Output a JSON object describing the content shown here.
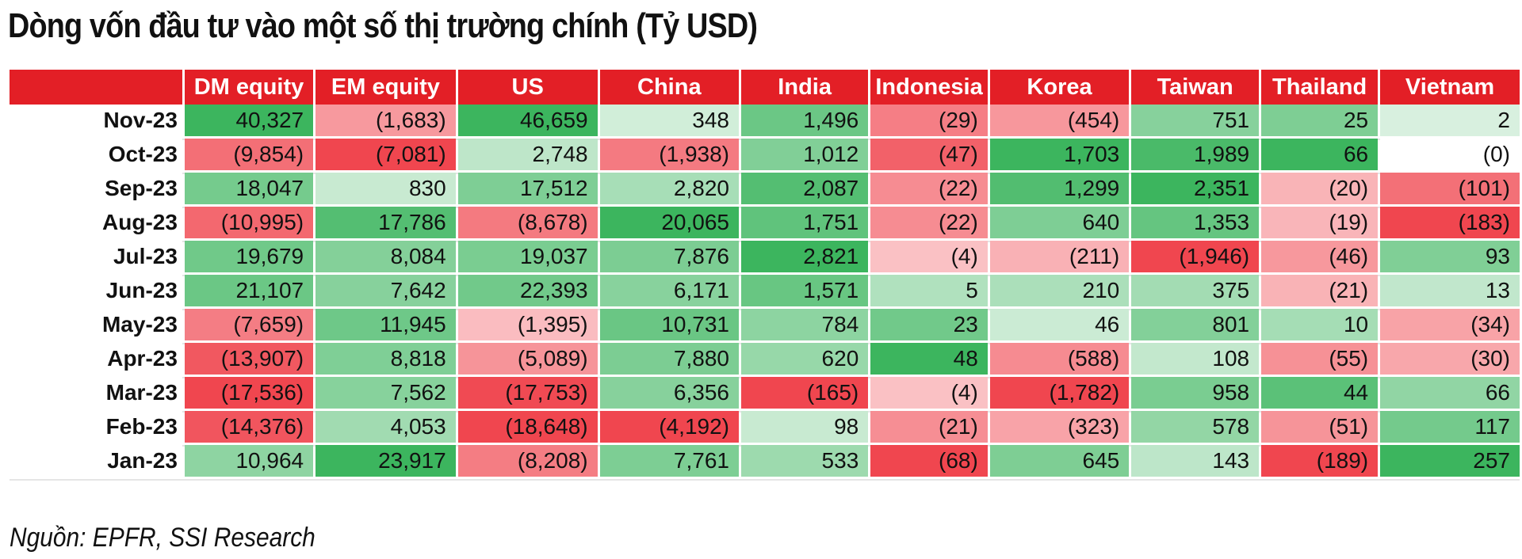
{
  "title": "Dòng vốn đầu tư vào một số thị trường chính (Tỷ USD)",
  "source": "Nguồn: EPFR, SSI Research",
  "colors": {
    "header": "#e31f26",
    "positive_max": "#3cb55e",
    "negative_max": "#f0464f",
    "neutral": "#ffffff"
  },
  "chart_data": {
    "type": "table",
    "title": "Dòng vốn đầu tư vào một số thị trường chính (Tỷ USD)",
    "columns": [
      "DM equity",
      "EM equity",
      "US",
      "China",
      "India",
      "Indonesia",
      "Korea",
      "Taiwan",
      "Thailand",
      "Vietnam"
    ],
    "rows": [
      {
        "label": "Nov-23",
        "values": [
          40327,
          -1683,
          46659,
          348,
          1496,
          -29,
          -454,
          751,
          25,
          2
        ],
        "display": [
          "40,327",
          "(1,683)",
          "46,659",
          "348",
          "1,496",
          "(29)",
          "(454)",
          "751",
          "25",
          "2"
        ]
      },
      {
        "label": "Oct-23",
        "values": [
          -9854,
          -7081,
          2748,
          -1938,
          1012,
          -47,
          1703,
          1989,
          66,
          0
        ],
        "display": [
          "(9,854)",
          "(7,081)",
          "2,748",
          "(1,938)",
          "1,012",
          "(47)",
          "1,703",
          "1,989",
          "66",
          "(0)"
        ]
      },
      {
        "label": "Sep-23",
        "values": [
          18047,
          830,
          17512,
          2820,
          2087,
          -22,
          1299,
          2351,
          -20,
          -101
        ],
        "display": [
          "18,047",
          "830",
          "17,512",
          "2,820",
          "2,087",
          "(22)",
          "1,299",
          "2,351",
          "(20)",
          "(101)"
        ]
      },
      {
        "label": "Aug-23",
        "values": [
          -10995,
          17786,
          -8678,
          20065,
          1751,
          -22,
          640,
          1353,
          -19,
          -183
        ],
        "display": [
          "(10,995)",
          "17,786",
          "(8,678)",
          "20,065",
          "1,751",
          "(22)",
          "640",
          "1,353",
          "(19)",
          "(183)"
        ]
      },
      {
        "label": "Jul-23",
        "values": [
          19679,
          8084,
          19037,
          7876,
          2821,
          -4,
          -211,
          -1946,
          -46,
          93
        ],
        "display": [
          "19,679",
          "8,084",
          "19,037",
          "7,876",
          "2,821",
          "(4)",
          "(211)",
          "(1,946)",
          "(46)",
          "93"
        ]
      },
      {
        "label": "Jun-23",
        "values": [
          21107,
          7642,
          22393,
          6171,
          1571,
          5,
          210,
          375,
          -21,
          13
        ],
        "display": [
          "21,107",
          "7,642",
          "22,393",
          "6,171",
          "1,571",
          "5",
          "210",
          "375",
          "(21)",
          "13"
        ]
      },
      {
        "label": "May-23",
        "values": [
          -7659,
          11945,
          -1395,
          10731,
          784,
          23,
          46,
          801,
          10,
          -34
        ],
        "display": [
          "(7,659)",
          "11,945",
          "(1,395)",
          "10,731",
          "784",
          "23",
          "46",
          "801",
          "10",
          "(34)"
        ]
      },
      {
        "label": "Apr-23",
        "values": [
          -13907,
          8818,
          -5089,
          7880,
          620,
          48,
          -588,
          108,
          -55,
          -30
        ],
        "display": [
          "(13,907)",
          "8,818",
          "(5,089)",
          "7,880",
          "620",
          "48",
          "(588)",
          "108",
          "(55)",
          "(30)"
        ]
      },
      {
        "label": "Mar-23",
        "values": [
          -17536,
          7562,
          -17753,
          6356,
          -165,
          -4,
          -1782,
          958,
          44,
          66
        ],
        "display": [
          "(17,536)",
          "7,562",
          "(17,753)",
          "6,356",
          "(165)",
          "(4)",
          "(1,782)",
          "958",
          "44",
          "66"
        ]
      },
      {
        "label": "Feb-23",
        "values": [
          -14376,
          4053,
          -18648,
          -4192,
          98,
          -21,
          -323,
          578,
          -51,
          117
        ],
        "display": [
          "(14,376)",
          "4,053",
          "(18,648)",
          "(4,192)",
          "98",
          "(21)",
          "(323)",
          "578",
          "(51)",
          "117"
        ]
      },
      {
        "label": "Jan-23",
        "values": [
          10964,
          23917,
          -8208,
          7761,
          533,
          -68,
          645,
          143,
          -189,
          257
        ],
        "display": [
          "10,964",
          "23,917",
          "(8,208)",
          "7,761",
          "533",
          "(68)",
          "645",
          "143",
          "(189)",
          "257"
        ]
      }
    ]
  }
}
